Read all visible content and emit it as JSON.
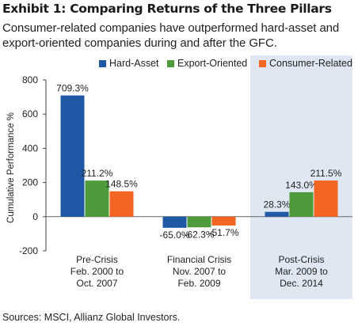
{
  "header": {
    "title": "Exhibit 1: Comparing Returns of the Three Pillars",
    "subtitle": "Consumer-related companies have outperformed hard-asset and export-oriented companies during and after the GFC."
  },
  "footer": {
    "source": "Sources: MSCI, Allianz Global Investors."
  },
  "chart_data": {
    "type": "bar",
    "categories": [
      [
        "Pre-Crisis",
        "Feb. 2000 to",
        "Oct. 2007"
      ],
      [
        "Financial Crisis",
        "Nov. 2007 to",
        "Feb. 2009"
      ],
      [
        "Post-Crisis",
        "Mar. 2009 to",
        "Dec. 2014"
      ]
    ],
    "series": [
      {
        "name": "Hard-Asset",
        "color": "#1f58a5",
        "values": [
          709.3,
          -65.0,
          28.3
        ],
        "labels": [
          "709.3%",
          "-65.0%",
          "28.3%"
        ]
      },
      {
        "name": "Export-Oriented",
        "color": "#4f9a3a",
        "values": [
          211.2,
          -62.3,
          143.0
        ],
        "labels": [
          "211.2%",
          "-62.3%",
          "143.0%"
        ]
      },
      {
        "name": "Consumer-Related",
        "color": "#f26522",
        "values": [
          148.5,
          -51.7,
          211.5
        ],
        "labels": [
          "148.5%",
          "-51.7%",
          "211.5%"
        ]
      }
    ],
    "ylabel": "Cumulative Performance %",
    "ylim": [
      -200,
      800
    ],
    "yticks": [
      -200,
      0,
      200,
      400,
      600,
      800
    ],
    "highlight_category": 2,
    "highlight_color": "#dfe7f2",
    "legend_position": "top-right",
    "grid": false
  }
}
